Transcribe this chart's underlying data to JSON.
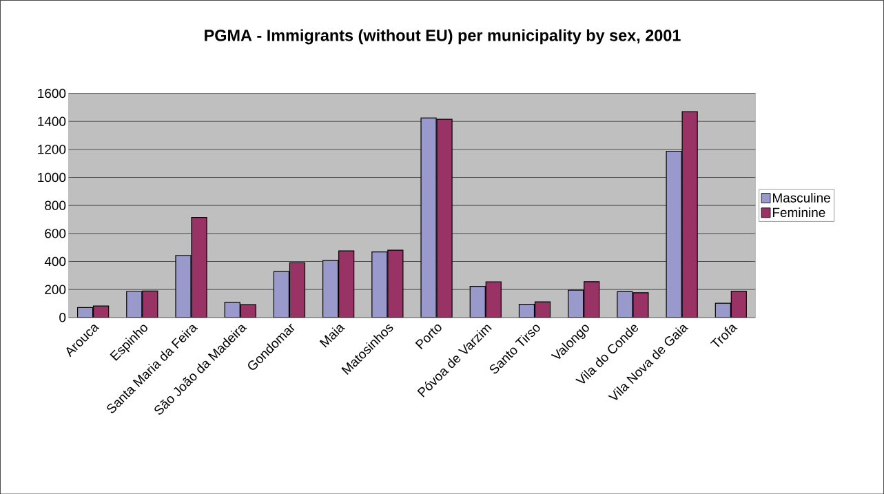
{
  "chart_data": {
    "type": "bar",
    "title": "PGMA - Immigrants (without EU) per municipality by sex, 2001",
    "categories": [
      "Arouca",
      "Espinho",
      "Santa Maria da Feira",
      "São João da Madeira",
      "Gondomar",
      "Maia",
      "Matosinhos",
      "Porto",
      "Póvoa de Varzim",
      "Santo Tirso",
      "Valongo",
      "Vila do Conde",
      "Vila Nova de Gaia",
      "Trofa"
    ],
    "series": [
      {
        "name": "Masculine",
        "color": "#9999cc",
        "values": [
          71,
          186,
          443,
          108,
          328,
          407,
          468,
          1425,
          222,
          94,
          195,
          184,
          1187,
          102
        ]
      },
      {
        "name": "Feminine",
        "color": "#993366",
        "values": [
          82,
          189,
          714,
          92,
          391,
          476,
          481,
          1415,
          255,
          112,
          256,
          177,
          1470,
          187
        ]
      }
    ],
    "ylim": [
      0,
      1600
    ],
    "yticks": [
      0,
      200,
      400,
      600,
      800,
      1000,
      1200,
      1400,
      1600
    ],
    "grid": "y",
    "legend": "right"
  }
}
